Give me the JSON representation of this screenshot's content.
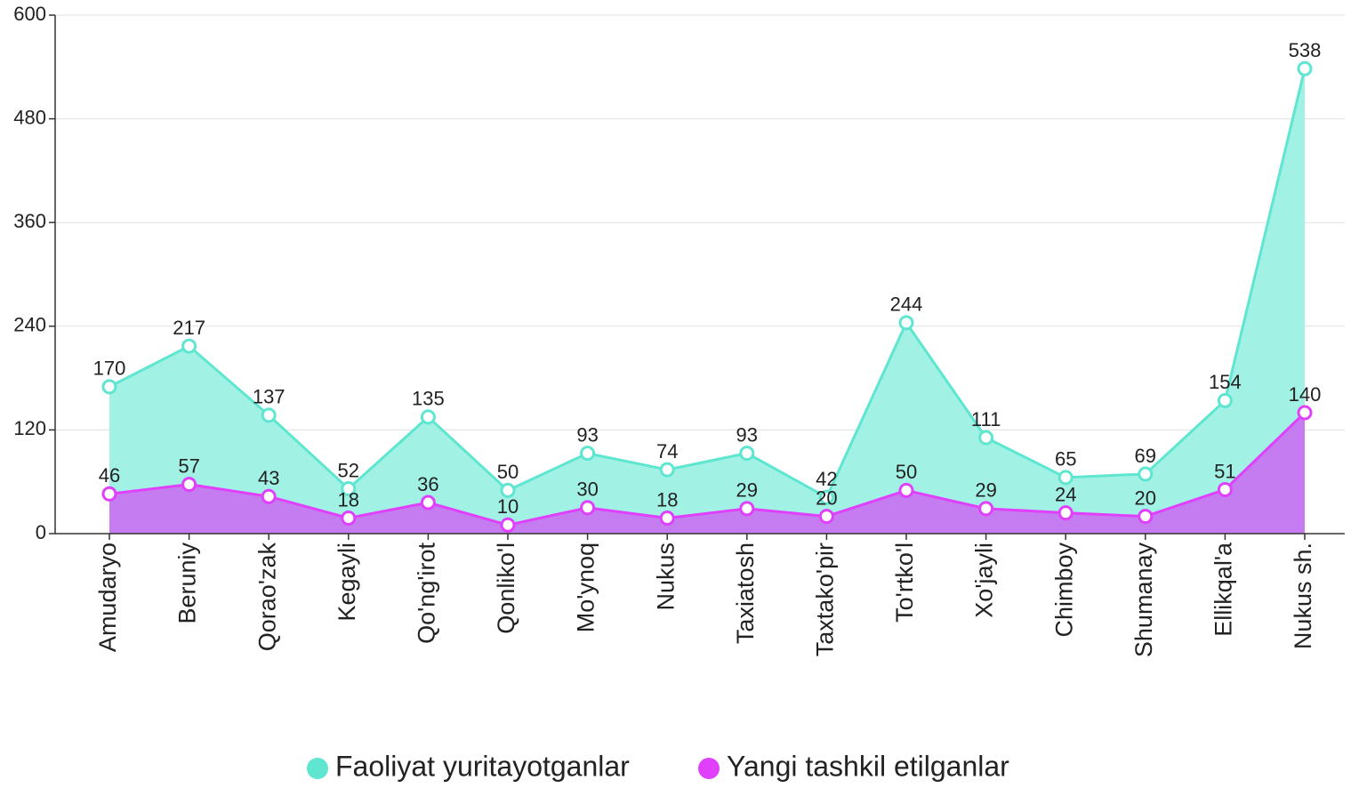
{
  "chart_data": {
    "type": "area",
    "categories": [
      "Amudaryo",
      "Beruniy",
      "Qorao'zak",
      "Kegayli",
      "Qo'ng'irot",
      "Qonliko'l",
      "Mo'ynoq",
      "Nukus",
      "Taxiatosh",
      "Taxtako'pir",
      "To'rtko'l",
      "Xo'jayli",
      "Chimboy",
      "Shumanay",
      "Ellikqal'a",
      "Nukus sh."
    ],
    "series": [
      {
        "name": "Faoliyat yuritayotganlar",
        "color": "#5ee6d0",
        "fill": "#a2f1e5",
        "values": [
          170,
          217,
          137,
          52,
          135,
          50,
          93,
          74,
          93,
          42,
          244,
          111,
          65,
          69,
          154,
          538
        ]
      },
      {
        "name": "Yangi tashkil etilganlar",
        "color": "#e040fb",
        "fill": "#c47cf0",
        "values": [
          46,
          57,
          43,
          18,
          36,
          10,
          30,
          18,
          29,
          20,
          50,
          29,
          24,
          20,
          51,
          140
        ]
      }
    ],
    "ylim": [
      0,
      600
    ],
    "yticks": [
      0,
      120,
      240,
      360,
      480,
      600
    ],
    "grid": true,
    "legend": "bottom"
  }
}
